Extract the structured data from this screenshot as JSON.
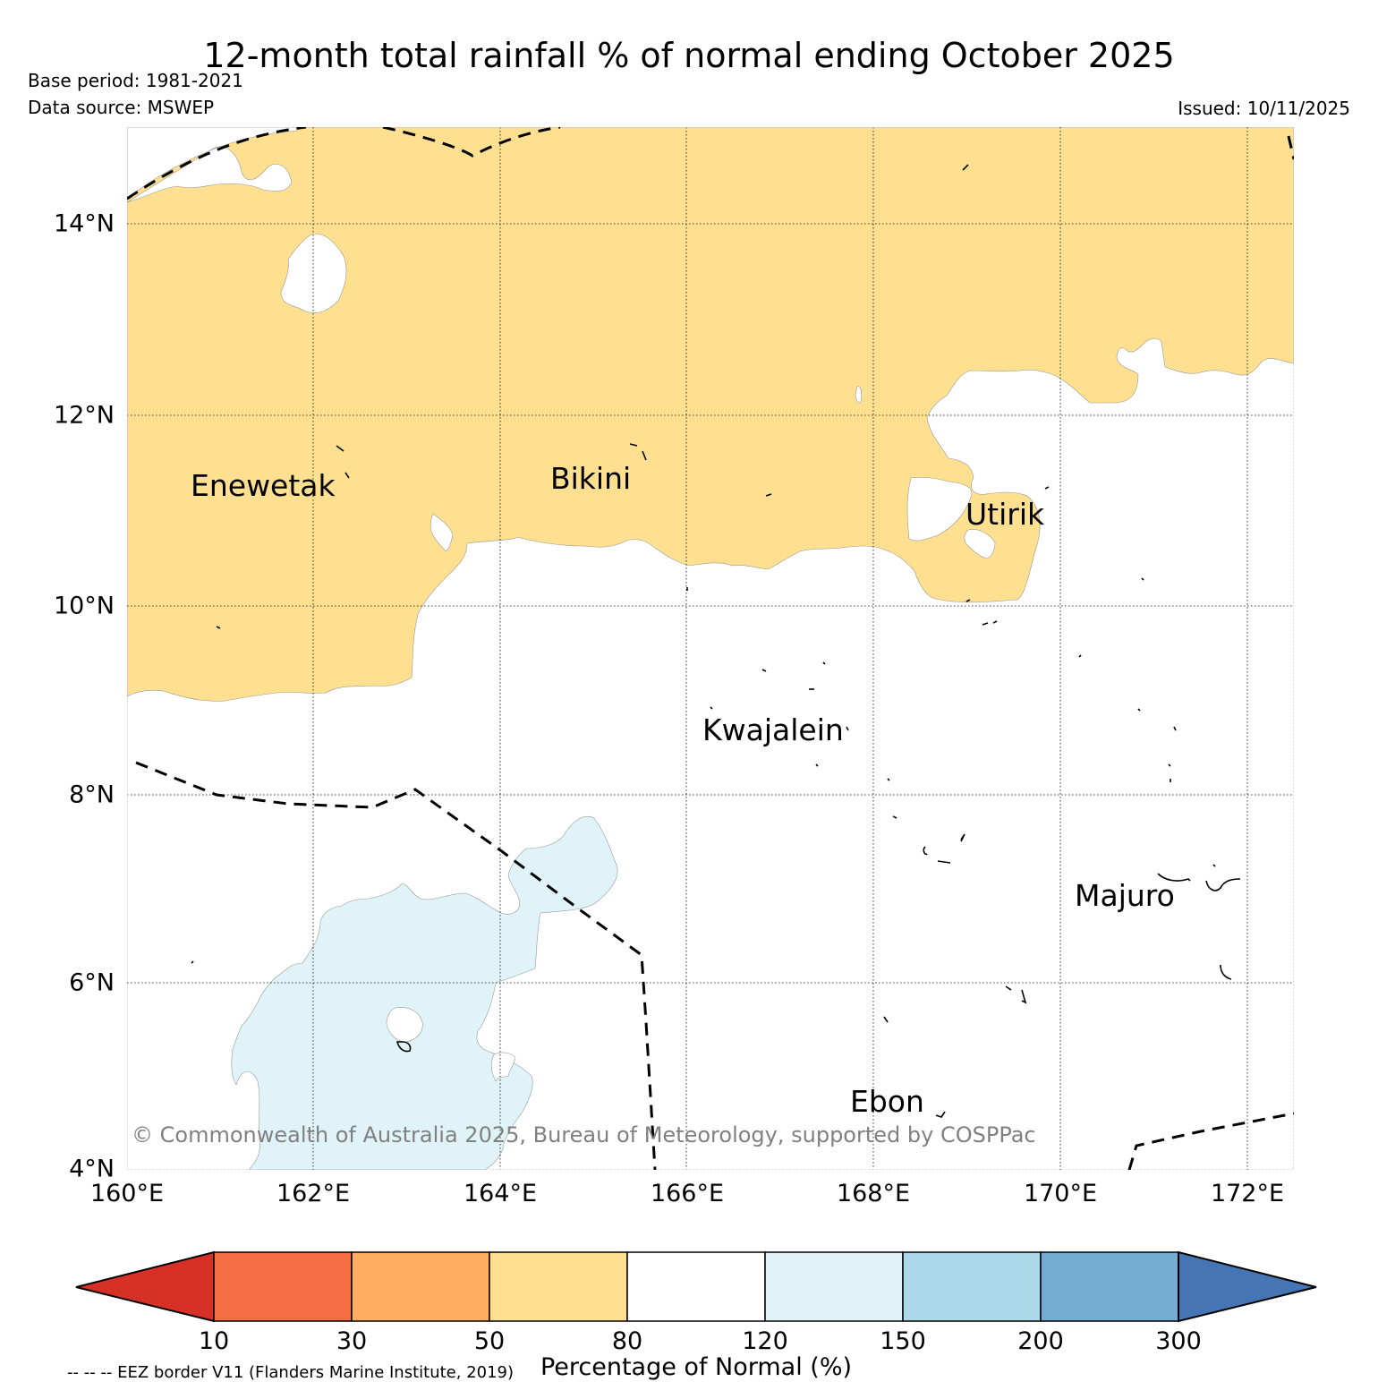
{
  "map": {
    "title": "12-month total rainfall % of normal ending October 2025",
    "base_period": "Base period: 1981-2021",
    "data_source": "Data source: MSWEP",
    "issued": "Issued: 10/11/2025",
    "copyright": "© Commonwealth of Australia 2025, Bureau of Meteorology, supported by COSPPac",
    "eez_note": "-- -- -- EEZ border V11 (Flanders Marine Institute, 2019)",
    "latitude_labels": [
      "14°N",
      "12°N",
      "10°N",
      "8°N",
      "6°N",
      "4°N"
    ],
    "longitude_labels": [
      "160°E",
      "162°E",
      "164°E",
      "166°E",
      "168°E",
      "170°E",
      "172°E"
    ],
    "places": [
      "Enewetak",
      "Bikini",
      "Utirik",
      "Kwajalein",
      "Majuro",
      "Ebon"
    ],
    "extent": {
      "lon_min": 160,
      "lon_max": 172.5,
      "lat_min": 4,
      "lat_max": 15
    }
  },
  "legend": {
    "label": "Percentage of Normal (%)",
    "ticks": [
      "10",
      "30",
      "50",
      "80",
      "120",
      "150",
      "200",
      "300"
    ],
    "colors": {
      "below_10": "#d73027",
      "10_30": "#f46d43",
      "30_50": "#fdae61",
      "50_80": "#fee090",
      "80_120": "#ffffff",
      "120_150": "#e0f3f8",
      "150_200": "#abd9e9",
      "200_300": "#74add1",
      "above_300": "#4575b4"
    }
  }
}
